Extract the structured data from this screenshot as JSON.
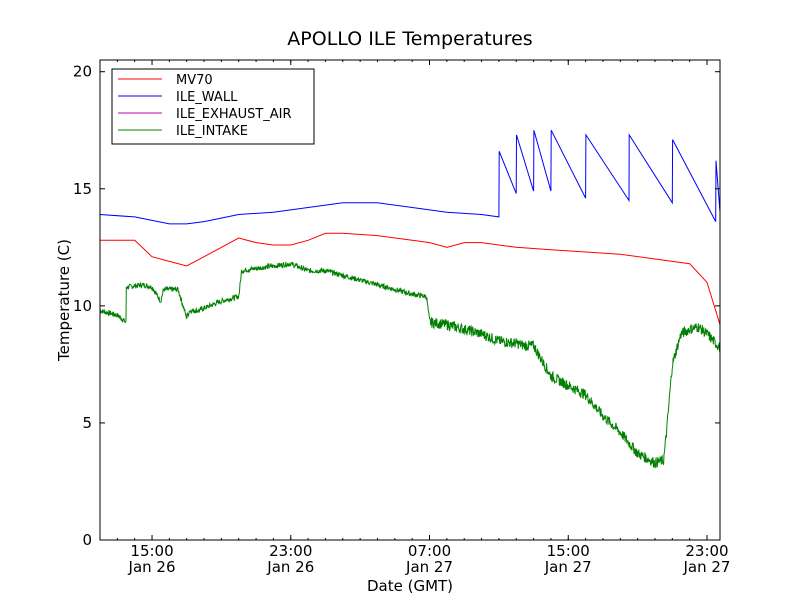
{
  "chart_data": {
    "type": "line",
    "title": "APOLLO ILE Temperatures",
    "xlabel": "Date (GMT)",
    "ylabel": "Temperature (C)",
    "x_unit": "hours",
    "xlim": [
      "2013-01-26 12:00",
      "2013-01-27 23:45"
    ],
    "ylim": [
      0,
      20.5
    ],
    "yticks": [
      0,
      5,
      10,
      15,
      20
    ],
    "xticks": [
      {
        "x": "2013-01-26 15:00",
        "line1": "15:00",
        "line2": "Jan 26"
      },
      {
        "x": "2013-01-26 23:00",
        "line1": "23:00",
        "line2": "Jan 26"
      },
      {
        "x": "2013-01-27 07:00",
        "line1": "07:00",
        "line2": "Jan 27"
      },
      {
        "x": "2013-01-27 15:00",
        "line1": "15:00",
        "line2": "Jan 27"
      },
      {
        "x": "2013-01-27 23:00",
        "line1": "23:00",
        "line2": "Jan 27"
      }
    ],
    "grid": false,
    "legend_position": "top-left",
    "series": [
      {
        "name": "MV70",
        "color": "#ff0000",
        "x": [
          "2013-01-26 12:00",
          "2013-01-26 14:00",
          "2013-01-26 15:00",
          "2013-01-26 16:00",
          "2013-01-26 17:00",
          "2013-01-26 18:00",
          "2013-01-26 20:00",
          "2013-01-26 21:00",
          "2013-01-26 22:00",
          "2013-01-26 23:00",
          "2013-01-27 00:00",
          "2013-01-27 01:00",
          "2013-01-27 02:00",
          "2013-01-27 04:00",
          "2013-01-27 06:00",
          "2013-01-27 07:00",
          "2013-01-27 08:00",
          "2013-01-27 09:00",
          "2013-01-27 10:00",
          "2013-01-27 12:00",
          "2013-01-27 14:00",
          "2013-01-27 16:00",
          "2013-01-27 18:00",
          "2013-01-27 20:00",
          "2013-01-27 21:00",
          "2013-01-27 22:00",
          "2013-01-27 23:00",
          "2013-01-27 23:45"
        ],
        "y": [
          12.8,
          12.8,
          12.1,
          11.9,
          11.7,
          12.1,
          12.9,
          12.7,
          12.6,
          12.6,
          12.8,
          13.1,
          13.1,
          13.0,
          12.8,
          12.7,
          12.5,
          12.7,
          12.7,
          12.5,
          12.4,
          12.3,
          12.2,
          12.0,
          11.9,
          11.8,
          11.0,
          9.2
        ]
      },
      {
        "name": "ILE_WALL",
        "color": "#0000ff",
        "x": [
          "2013-01-26 12:00",
          "2013-01-26 14:00",
          "2013-01-26 16:00",
          "2013-01-26 17:00",
          "2013-01-26 18:00",
          "2013-01-26 20:00",
          "2013-01-26 22:00",
          "2013-01-27 00:00",
          "2013-01-27 02:00",
          "2013-01-27 04:00",
          "2013-01-27 06:00",
          "2013-01-27 08:00",
          "2013-01-27 10:00",
          "2013-01-27 11:00",
          "2013-01-27 11:01",
          "2013-01-27 12:00",
          "2013-01-27 12:01",
          "2013-01-27 13:00",
          "2013-01-27 13:01",
          "2013-01-27 14:00",
          "2013-01-27 14:01",
          "2013-01-27 16:00",
          "2013-01-27 16:01",
          "2013-01-27 18:30",
          "2013-01-27 18:31",
          "2013-01-27 21:00",
          "2013-01-27 21:01",
          "2013-01-27 23:30",
          "2013-01-27 23:31",
          "2013-01-27 23:45"
        ],
        "y": [
          13.9,
          13.8,
          13.5,
          13.5,
          13.6,
          13.9,
          14.0,
          14.2,
          14.4,
          14.4,
          14.2,
          14.0,
          13.9,
          13.8,
          16.6,
          14.8,
          17.3,
          14.9,
          17.5,
          14.9,
          17.5,
          14.6,
          17.3,
          14.5,
          17.3,
          14.4,
          17.1,
          13.6,
          16.2,
          14.0
        ]
      },
      {
        "name": "ILE_EXHAUST_AIR",
        "color": "#bf00bf",
        "x": [],
        "y": []
      },
      {
        "name": "ILE_INTAKE",
        "color": "#008000",
        "x": [
          "2013-01-26 12:00",
          "2013-01-26 13:00",
          "2013-01-26 13:30",
          "2013-01-26 13:31",
          "2013-01-26 14:30",
          "2013-01-26 15:00",
          "2013-01-26 15:30",
          "2013-01-26 15:40",
          "2013-01-26 15:50",
          "2013-01-26 16:30",
          "2013-01-26 17:00",
          "2013-01-26 17:10",
          "2013-01-26 17:40",
          "2013-01-26 19:00",
          "2013-01-26 20:00",
          "2013-01-26 20:10",
          "2013-01-26 21:00",
          "2013-01-26 22:00",
          "2013-01-26 23:00",
          "2013-01-27 00:00",
          "2013-01-27 01:00",
          "2013-01-27 02:00",
          "2013-01-27 03:00",
          "2013-01-27 04:00",
          "2013-01-27 05:00",
          "2013-01-27 06:00",
          "2013-01-27 06:50",
          "2013-01-27 07:00",
          "2013-01-27 08:00",
          "2013-01-27 09:00",
          "2013-01-27 10:00",
          "2013-01-27 11:00",
          "2013-01-27 12:00",
          "2013-01-27 12:30",
          "2013-01-27 13:00",
          "2013-01-27 14:00",
          "2013-01-27 15:00",
          "2013-01-27 16:00",
          "2013-01-27 17:00",
          "2013-01-27 18:00",
          "2013-01-27 19:00",
          "2013-01-27 20:00",
          "2013-01-27 20:30",
          "2013-01-27 20:40",
          "2013-01-27 21:00",
          "2013-01-27 21:30",
          "2013-01-27 22:00",
          "2013-01-27 22:30",
          "2013-01-27 23:00",
          "2013-01-27 23:45"
        ],
        "y": [
          9.8,
          9.6,
          9.3,
          10.8,
          10.9,
          10.8,
          10.2,
          10.7,
          10.7,
          10.7,
          9.5,
          9.8,
          9.8,
          10.2,
          10.4,
          11.5,
          11.6,
          11.7,
          11.8,
          11.5,
          11.5,
          11.3,
          11.1,
          10.9,
          10.7,
          10.5,
          10.4,
          9.3,
          9.2,
          9.0,
          8.8,
          8.5,
          8.4,
          8.3,
          8.3,
          7.0,
          6.6,
          6.2,
          5.3,
          4.6,
          3.7,
          3.3,
          3.4,
          4.6,
          7.5,
          8.8,
          9.0,
          9.1,
          8.8,
          8.2
        ]
      }
    ]
  }
}
